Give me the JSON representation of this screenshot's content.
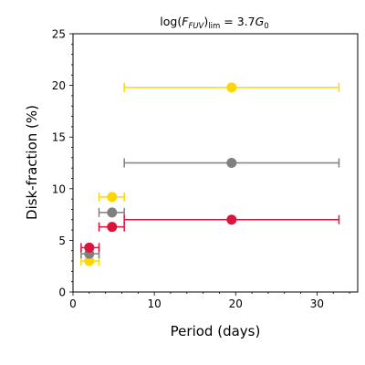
{
  "chart_data": {
    "type": "scatter",
    "title": "log(F_FUV)_lim = 3.7G_0",
    "title_parts": {
      "a": "log(",
      "f": "F",
      "sub": "FUV",
      "b": ")",
      "lim": "lim",
      "eq": " = 3.7",
      "g": "G",
      "gsub": "0"
    },
    "xlabel": "Period (days)",
    "ylabel": "Disk-fraction (%)",
    "xlim": [
      0,
      35
    ],
    "ylim": [
      0,
      25
    ],
    "xticks": [
      0,
      10,
      20,
      30
    ],
    "yticks": [
      0,
      5,
      10,
      15,
      20,
      25
    ],
    "grid": false,
    "series": [
      {
        "color": "#ffd700",
        "points": [
          {
            "x": 2.0,
            "y": 3.0,
            "xmin": 1.0,
            "xmax": 3.2
          },
          {
            "x": 4.8,
            "y": 9.2,
            "xmin": 3.2,
            "xmax": 6.3
          },
          {
            "x": 19.5,
            "y": 19.8,
            "xmin": 6.3,
            "xmax": 32.7
          }
        ]
      },
      {
        "color": "#808080",
        "points": [
          {
            "x": 2.0,
            "y": 3.7,
            "xmin": 1.0,
            "xmax": 3.2
          },
          {
            "x": 4.8,
            "y": 7.7,
            "xmin": 3.2,
            "xmax": 6.3
          },
          {
            "x": 19.5,
            "y": 12.5,
            "xmin": 6.3,
            "xmax": 32.7
          }
        ]
      },
      {
        "color": "#dc143c",
        "points": [
          {
            "x": 2.0,
            "y": 4.3,
            "xmin": 1.0,
            "xmax": 3.2
          },
          {
            "x": 4.8,
            "y": 6.3,
            "xmin": 3.2,
            "xmax": 6.3
          },
          {
            "x": 19.5,
            "y": 7.0,
            "xmin": 6.3,
            "xmax": 32.7
          }
        ]
      }
    ]
  }
}
